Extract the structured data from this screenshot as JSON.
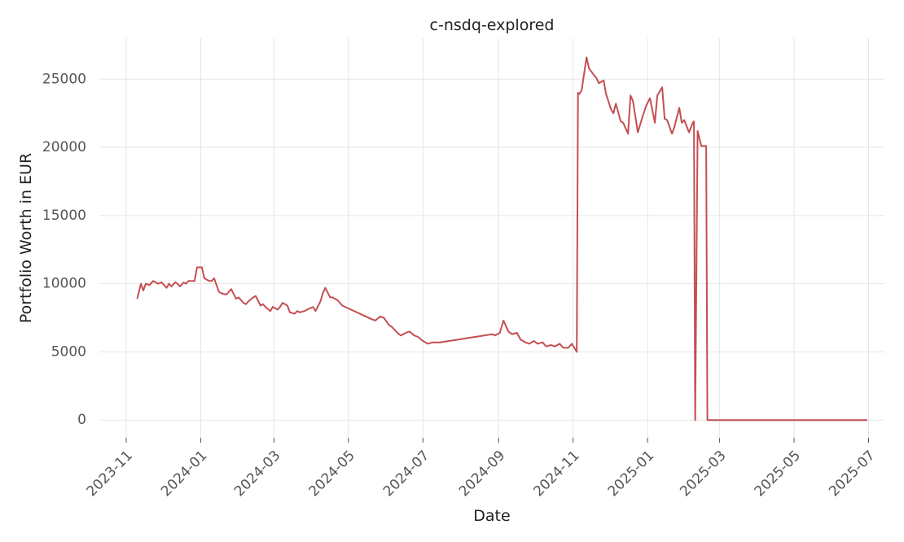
{
  "chart_data": {
    "type": "line",
    "title": "c-nsdq-explored",
    "xlabel": "Date",
    "ylabel": "Portfolio Worth in EUR",
    "xlim": [
      "2023-10-10",
      "2025-07-14"
    ],
    "ylim": [
      -1300,
      28000
    ],
    "x_ticks": [
      "2023-11-01",
      "2024-01-01",
      "2024-03-01",
      "2024-05-01",
      "2024-07-01",
      "2024-09-01",
      "2024-11-01",
      "2025-01-01",
      "2025-03-01",
      "2025-05-01",
      "2025-07-01"
    ],
    "x_tick_labels": [
      "2023-11",
      "2024-01",
      "2024-03",
      "2024-05",
      "2024-07",
      "2024-09",
      "2024-11",
      "2025-01",
      "2025-03",
      "2025-05",
      "2025-07"
    ],
    "y_ticks": [
      0,
      5000,
      10000,
      15000,
      20000,
      25000
    ],
    "y_tick_labels": [
      "0",
      "5000",
      "10000",
      "15000",
      "20000",
      "25000"
    ],
    "grid": true,
    "line_color": "#c44e52",
    "series": [
      {
        "x": [
          "2023-11-10",
          "2023-11-13",
          "2023-11-15",
          "2023-11-17",
          "2023-11-20",
          "2023-11-23",
          "2023-11-27",
          "2023-11-30",
          "2023-12-04",
          "2023-12-06",
          "2023-12-08",
          "2023-12-11",
          "2023-12-13",
          "2023-12-15",
          "2023-12-18",
          "2023-12-20",
          "2023-12-22",
          "2023-12-27",
          "2023-12-29",
          "2024-01-02",
          "2024-01-04",
          "2024-01-08",
          "2024-01-10",
          "2024-01-12",
          "2024-01-16",
          "2024-01-18",
          "2024-01-22",
          "2024-01-24",
          "2024-01-26",
          "2024-01-30",
          "2024-02-01",
          "2024-02-05",
          "2024-02-07",
          "2024-02-09",
          "2024-02-13",
          "2024-02-15",
          "2024-02-19",
          "2024-02-21",
          "2024-02-23",
          "2024-02-27",
          "2024-02-29",
          "2024-03-04",
          "2024-03-06",
          "2024-03-08",
          "2024-03-12",
          "2024-03-14",
          "2024-03-18",
          "2024-03-20",
          "2024-03-22",
          "2024-03-26",
          "2024-03-28",
          "2024-04-02",
          "2024-04-04",
          "2024-04-08",
          "2024-04-10",
          "2024-04-12",
          "2024-04-16",
          "2024-04-18",
          "2024-04-22",
          "2024-04-24",
          "2024-04-26",
          "2024-05-20",
          "2024-05-23",
          "2024-05-27",
          "2024-05-30",
          "2024-06-03",
          "2024-06-06",
          "2024-06-10",
          "2024-06-13",
          "2024-06-17",
          "2024-06-20",
          "2024-06-24",
          "2024-06-27",
          "2024-07-01",
          "2024-07-05",
          "2024-07-09",
          "2024-07-11",
          "2024-07-15",
          "2024-08-27",
          "2024-08-29",
          "2024-09-02",
          "2024-09-05",
          "2024-09-09",
          "2024-09-12",
          "2024-09-16",
          "2024-09-19",
          "2024-09-23",
          "2024-09-26",
          "2024-09-30",
          "2024-10-03",
          "2024-10-07",
          "2024-10-10",
          "2024-10-14",
          "2024-10-17",
          "2024-10-21",
          "2024-10-24",
          "2024-10-28",
          "2024-10-31",
          "2024-11-04",
          "2024-11-05",
          "2024-11-06",
          "2024-11-08",
          "2024-11-12",
          "2024-11-14",
          "2024-11-18",
          "2024-11-20",
          "2024-11-22",
          "2024-11-26",
          "2024-11-28",
          "2024-12-02",
          "2024-12-04",
          "2024-12-06",
          "2024-12-10",
          "2024-12-12",
          "2024-12-16",
          "2024-12-18",
          "2024-12-20",
          "2024-12-24",
          "2024-12-27",
          "2024-12-31",
          "2025-01-03",
          "2025-01-07",
          "2025-01-09",
          "2025-01-13",
          "2025-01-15",
          "2025-01-17",
          "2025-01-21",
          "2025-01-23",
          "2025-01-27",
          "2025-01-29",
          "2025-01-31",
          "2025-02-04",
          "2025-02-07",
          "2025-02-08",
          "2025-02-09",
          "2025-02-11",
          "2025-02-14",
          "2025-02-18",
          "2025-02-19",
          "2025-02-20",
          "2025-06-30"
        ],
        "y": [
          8900,
          10000,
          9500,
          10000,
          9900,
          10200,
          10000,
          10100,
          9700,
          10000,
          9800,
          10100,
          10000,
          9800,
          10100,
          10000,
          10200,
          10200,
          11200,
          11200,
          10400,
          10200,
          10200,
          10400,
          9400,
          9300,
          9200,
          9400,
          9600,
          8900,
          9000,
          8600,
          8500,
          8700,
          9000,
          9100,
          8400,
          8500,
          8300,
          8000,
          8300,
          8100,
          8300,
          8600,
          8400,
          7900,
          7800,
          8000,
          7900,
          8000,
          8100,
          8300,
          8000,
          8700,
          9300,
          9700,
          9000,
          9000,
          8800,
          8600,
          8400,
          7400,
          7300,
          7600,
          7500,
          7000,
          6800,
          6400,
          6200,
          6400,
          6500,
          6200,
          6100,
          5800,
          5600,
          5700,
          5700,
          5700,
          6300,
          6200,
          6400,
          7300,
          6500,
          6300,
          6400,
          5900,
          5700,
          5600,
          5800,
          5600,
          5700,
          5400,
          5500,
          5400,
          5600,
          5300,
          5300,
          5600,
          5000,
          24000,
          23900,
          24200,
          26600,
          25800,
          25300,
          25100,
          24700,
          24900,
          23900,
          22800,
          22500,
          23200,
          21900,
          21800,
          21000,
          23800,
          23400,
          21100,
          22000,
          23100,
          23600,
          21800,
          23800,
          24400,
          22100,
          22000,
          21000,
          21500,
          22900,
          21800,
          22000,
          21100,
          21800,
          21900,
          0,
          21200,
          20100,
          20100,
          0,
          0,
          0
        ]
      }
    ]
  }
}
